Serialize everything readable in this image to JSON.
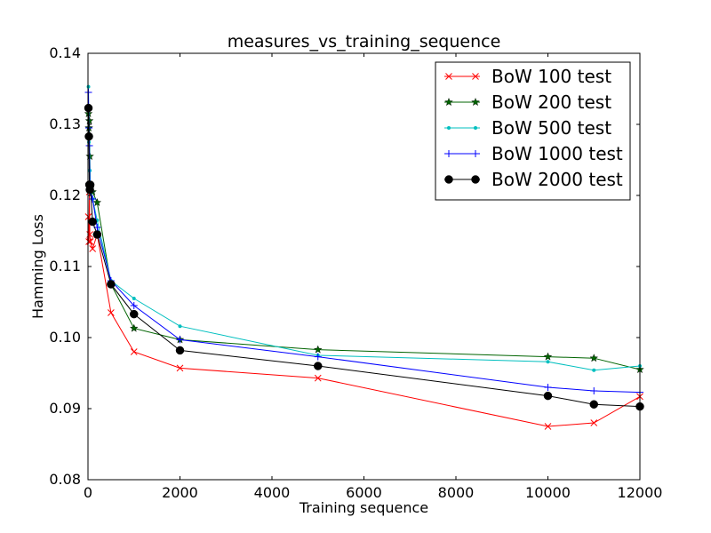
{
  "chart_data": {
    "type": "line",
    "title": "measures_vs_training_sequence",
    "xlabel": "Training sequence",
    "ylabel": "Hamming Loss",
    "xlim": [
      0,
      12000
    ],
    "ylim": [
      0.08,
      0.14
    ],
    "xticks": [
      0,
      2000,
      4000,
      6000,
      8000,
      10000,
      12000
    ],
    "xtick_labels": [
      "0",
      "2000",
      "4000",
      "6000",
      "8000",
      "10000",
      "12000"
    ],
    "yticks": [
      0.08,
      0.09,
      0.1,
      0.11,
      0.12,
      0.13,
      0.14
    ],
    "ytick_labels": [
      "0.08",
      "0.09",
      "0.10",
      "0.11",
      "0.12",
      "0.13",
      "0.14"
    ],
    "grid": false,
    "legend_position": "top-right",
    "series": [
      {
        "name": "BoW 100 test",
        "color": "#ff0000",
        "marker": "x",
        "x": [
          10,
          20,
          30,
          40,
          50,
          100,
          200,
          500,
          1000,
          2000,
          5000,
          10000,
          11000,
          12000
        ],
        "y": [
          0.117,
          0.1135,
          0.1205,
          0.1145,
          0.1135,
          0.1125,
          0.1145,
          0.1035,
          0.098,
          0.0957,
          0.0943,
          0.0875,
          0.088,
          0.0917
        ]
      },
      {
        "name": "BoW 200 test",
        "color": "#006400",
        "marker": "star",
        "x": [
          10,
          20,
          30,
          40,
          50,
          100,
          200,
          500,
          1000,
          2000,
          5000,
          10000,
          11000,
          12000
        ],
        "y": [
          0.1315,
          0.1295,
          0.1305,
          0.1255,
          0.121,
          0.1205,
          0.119,
          0.1075,
          0.1013,
          0.0997,
          0.0983,
          0.0973,
          0.0971,
          0.0955
        ]
      },
      {
        "name": "BoW 500 test",
        "color": "#00bfbf",
        "marker": "dot",
        "x": [
          10,
          20,
          30,
          40,
          50,
          100,
          200,
          500,
          1000,
          2000,
          5000,
          10000,
          11000,
          12000
        ],
        "y": [
          0.1353,
          0.1275,
          0.1285,
          0.1235,
          0.1215,
          0.1195,
          0.1165,
          0.108,
          0.1055,
          0.1016,
          0.0975,
          0.0966,
          0.0954,
          0.096
        ]
      },
      {
        "name": "BoW 1000 test",
        "color": "#0000ff",
        "marker": "plus",
        "x": [
          10,
          20,
          30,
          40,
          50,
          100,
          200,
          500,
          1000,
          2000,
          5000,
          10000,
          11000,
          12000
        ],
        "y": [
          0.1345,
          0.1295,
          0.127,
          0.1215,
          0.1205,
          0.1195,
          0.1155,
          0.108,
          0.1045,
          0.0997,
          0.0973,
          0.093,
          0.0925,
          0.0923
        ]
      },
      {
        "name": "BoW 2000 test",
        "color": "#000000",
        "marker": "circle",
        "x": [
          10,
          20,
          30,
          40,
          50,
          100,
          200,
          500,
          1000,
          2000,
          5000,
          10000,
          11000,
          12000
        ],
        "y": [
          0.1323,
          0.1283,
          0.1215,
          0.1208,
          0.1215,
          0.1163,
          0.1145,
          0.1075,
          0.1033,
          0.0982,
          0.096,
          0.0918,
          0.0906,
          0.0903
        ]
      }
    ]
  }
}
